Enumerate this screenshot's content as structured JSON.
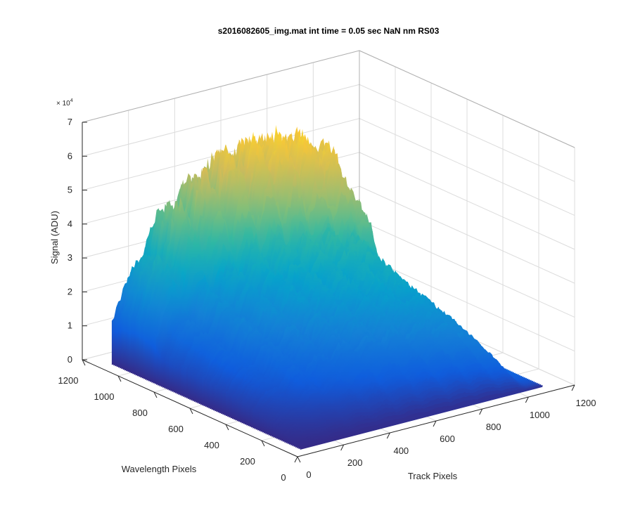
{
  "chart_data": {
    "type": "surface",
    "title": "s2016082605_img.mat int time = 0.05 sec  NaN nm RS03",
    "xlabel": "Track Pixels",
    "ylabel": "Wavelength Pixels",
    "zlabel": "Signal (ADU)",
    "z_exponent_label": "× 10",
    "z_exponent_power": "4",
    "x_ticks": [
      "0",
      "200",
      "400",
      "600",
      "800",
      "1000",
      "1200"
    ],
    "y_ticks": [
      "0",
      "200",
      "400",
      "600",
      "800",
      "1000",
      "1200"
    ],
    "z_ticks": [
      "0",
      "1",
      "2",
      "3",
      "4",
      "5",
      "6",
      "7"
    ],
    "xlim": [
      0,
      1200
    ],
    "ylim": [
      0,
      1200
    ],
    "zlim": [
      0,
      70000
    ],
    "grid": true,
    "colormap": "parula",
    "colormap_colors": [
      "#352a87",
      "#0f5cdd",
      "#1481d6",
      "#06a4ca",
      "#2eb7a4",
      "#87bf77",
      "#d1bb59",
      "#fec832",
      "#f9fb0e"
    ],
    "track_start": 50,
    "track_end": 1100,
    "wavelength_start": 50,
    "wavelength_end": 1100,
    "profile_wavelength": [
      50,
      100,
      200,
      350,
      500,
      600,
      700,
      780,
      820,
      870,
      950,
      1050,
      1100
    ],
    "profile_peak_signal": [
      2000,
      8000,
      15000,
      22000,
      27000,
      30000,
      33000,
      36000,
      38000,
      56000,
      65000,
      60000,
      48000
    ],
    "track_profile_track": [
      50,
      200,
      400,
      600,
      800,
      900,
      1000,
      1050,
      1100
    ],
    "track_profile_factor": [
      0.35,
      0.75,
      0.95,
      1.0,
      0.95,
      0.85,
      0.55,
      0.12,
      0.03
    ]
  }
}
